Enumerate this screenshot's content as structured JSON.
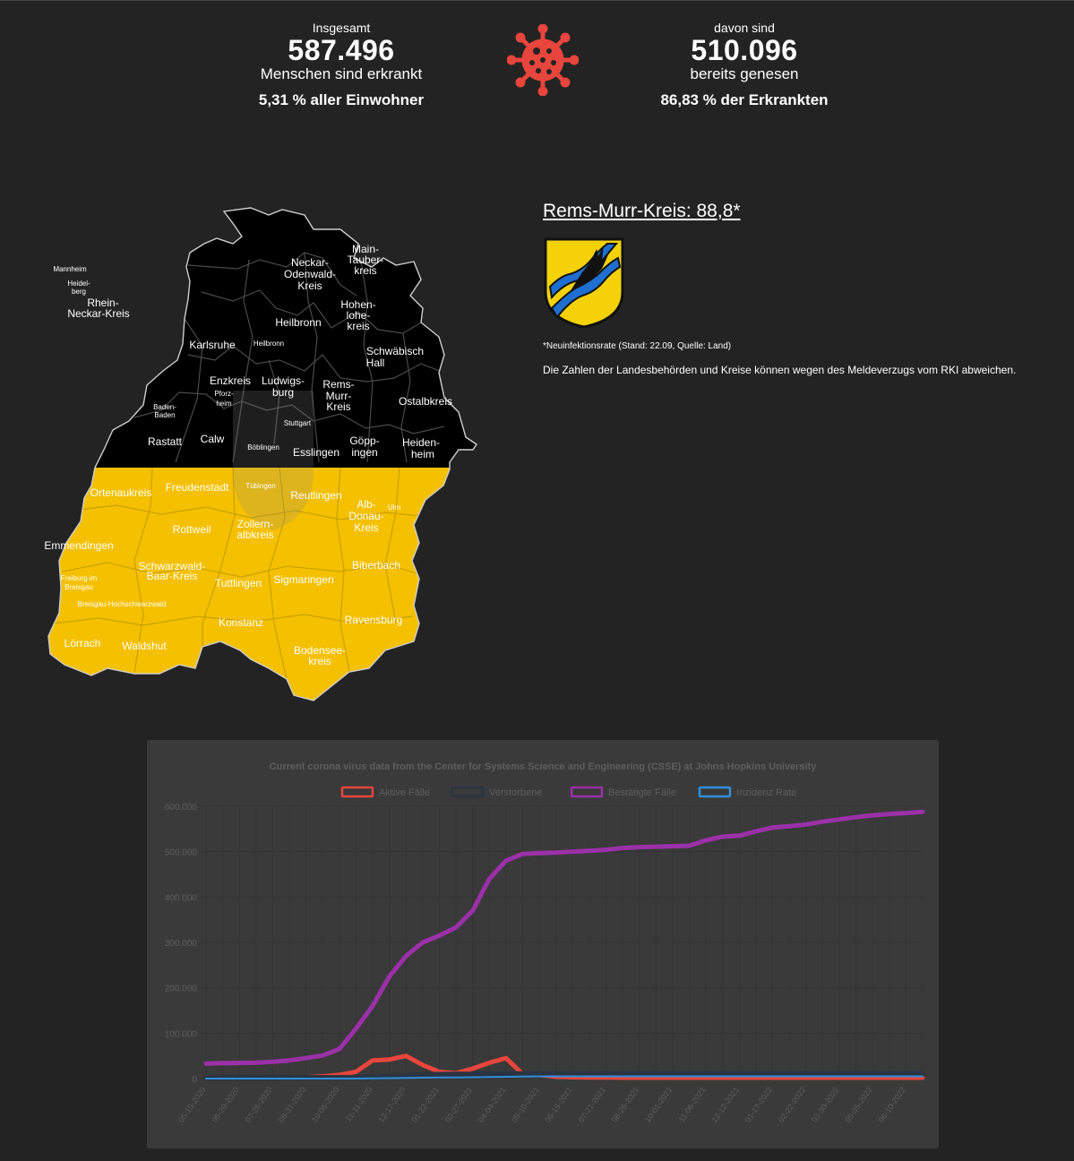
{
  "stats": {
    "left": {
      "label": "Insgesamt",
      "number": "587.496",
      "sub": "Menschen sind erkrankt",
      "percent": "5,31 % aller Einwohner"
    },
    "right": {
      "label": "davon sind",
      "number": "510.096",
      "sub": "bereits genesen",
      "percent": "86,83 % der Erkrankten"
    }
  },
  "district": {
    "title": "Rems-Murr-Kreis: 88,8*",
    "note": "*Neuinfektionsrate (Stand: 22.09, Quelle: Land)",
    "disclaimer": "Die Zahlen der Landesbehörden und Kreise können wegen des Meldeverzugs vom RKI abweichen."
  },
  "map": {
    "top_color": "#000000",
    "bottom_color": "#f5c000",
    "districts": [
      {
        "label": "Mannheim",
        "size": "tiny"
      },
      {
        "label": "Heidel-",
        "size": "tiny"
      },
      {
        "label": "berg",
        "size": "tiny"
      },
      {
        "label": "Rhein-",
        "size": "small"
      },
      {
        "label": "Neckar-Kreis",
        "size": "small"
      },
      {
        "label": "Neckar-",
        "size": "small"
      },
      {
        "label": "Odenwald-",
        "size": "small"
      },
      {
        "label": "Kreis",
        "size": "small"
      },
      {
        "label": "Main-",
        "size": "small"
      },
      {
        "label": "Tauber-",
        "size": "small"
      },
      {
        "label": "kreis",
        "size": "small"
      },
      {
        "label": "Heilbronn",
        "size": "small"
      },
      {
        "label": "Hohen-",
        "size": "small"
      },
      {
        "label": "lohe-",
        "size": "small"
      },
      {
        "label": "kreis",
        "size": "small"
      },
      {
        "label": "Karlsruhe",
        "size": "small"
      },
      {
        "label": "Heilbronn",
        "size": "tiny"
      },
      {
        "label": "Schwäbisch",
        "size": "small"
      },
      {
        "label": "Hall",
        "size": "small"
      },
      {
        "label": "Enzkreis",
        "size": "small"
      },
      {
        "label": "Ludwigs-",
        "size": "small"
      },
      {
        "label": "burg",
        "size": "small"
      },
      {
        "label": "Rems-",
        "size": "small"
      },
      {
        "label": "Murr-",
        "size": "small"
      },
      {
        "label": "Kreis",
        "size": "small"
      },
      {
        "label": "Pforz-",
        "size": "tiny"
      },
      {
        "label": "heim",
        "size": "tiny"
      },
      {
        "label": "Baden-",
        "size": "tiny"
      },
      {
        "label": "Baden",
        "size": "tiny"
      },
      {
        "label": "Ostalbkreis",
        "size": "small"
      },
      {
        "label": "Stuttgart",
        "size": "tiny"
      },
      {
        "label": "Rastatt",
        "size": "small"
      },
      {
        "label": "Calw",
        "size": "small"
      },
      {
        "label": "Böblingen",
        "size": "tiny"
      },
      {
        "label": "Göpp-",
        "size": "small"
      },
      {
        "label": "ingen",
        "size": "small"
      },
      {
        "label": "Heiden-",
        "size": "small"
      },
      {
        "label": "heim",
        "size": "small"
      },
      {
        "label": "Esslingen",
        "size": "small"
      },
      {
        "label": "Ortenaukreis",
        "size": "small"
      },
      {
        "label": "Freudenstadt",
        "size": "small"
      },
      {
        "label": "Tübingen",
        "size": "tiny"
      },
      {
        "label": "Reutlingen",
        "size": "small"
      },
      {
        "label": "Alb-",
        "size": "small"
      },
      {
        "label": "Donau-",
        "size": "small"
      },
      {
        "label": "Kreis",
        "size": "small"
      },
      {
        "label": "Ulm",
        "size": "tiny"
      },
      {
        "label": "Rottweil",
        "size": "small"
      },
      {
        "label": "Zollern-",
        "size": "small"
      },
      {
        "label": "albkreis",
        "size": "small"
      },
      {
        "label": "Emmendingen",
        "size": "small"
      },
      {
        "label": "Schwarzwald-",
        "size": "small"
      },
      {
        "label": "Baar-Kreis",
        "size": "small"
      },
      {
        "label": "Biberbach",
        "size": "small"
      },
      {
        "label": "Freiburg im",
        "size": "tiny"
      },
      {
        "label": "Breisgau",
        "size": "tiny"
      },
      {
        "label": "Tuttlingen",
        "size": "small"
      },
      {
        "label": "Sigmaringen",
        "size": "small"
      },
      {
        "label": "Breisgau-Hochschwarzwald",
        "size": "tiny"
      },
      {
        "label": "Ravensburg",
        "size": "small"
      },
      {
        "label": "Konstanz",
        "size": "small"
      },
      {
        "label": "Lörrach",
        "size": "small"
      },
      {
        "label": "Waldshut",
        "size": "small"
      },
      {
        "label": "Bodensee-",
        "size": "small"
      },
      {
        "label": "kreis",
        "size": "small"
      }
    ]
  },
  "chart_data": {
    "type": "line",
    "title": "Current corona virus data from the Center for Systems Science and Engineering (CSSE) at Johns Hopkins University",
    "xlabel": "",
    "ylabel": "",
    "ylim": [
      0,
      600000
    ],
    "y_ticks": [
      "0",
      "100.000",
      "200.000",
      "300.000",
      "400.000",
      "500.000",
      "600.000"
    ],
    "grid": true,
    "legend_position": "top",
    "categories": [
      "05-15-2020",
      "06-02-2020",
      "06-20-2020",
      "07-08-2020",
      "07-26-2020",
      "08-13-2020",
      "08-31-2020",
      "09-18-2020",
      "10-06-2020",
      "10-24-2020",
      "11-11-2020",
      "11-29-2020",
      "12-17-2020",
      "01-04-2021",
      "01-22-2021",
      "02-09-2021",
      "02-27-2021",
      "03-17-2021",
      "04-04-2021",
      "04-22-2021",
      "05-10-2021",
      "05-28-2021",
      "06-15-2021",
      "07-03-2021",
      "07-21-2021",
      "08-08-2021",
      "08-26-2021",
      "09-13-2021",
      "10-01-2021",
      "10-19-2021",
      "11-06-2021",
      "11-24-2021",
      "12-12-2021",
      "12-30-2021",
      "01-17-2022",
      "02-04-2022",
      "02-22-2022",
      "03-12-2022",
      "03-30-2022",
      "04-17-2022",
      "05-05-2022",
      "05-23-2022",
      "06-10-2022",
      "06-28-2022"
    ],
    "series": [
      {
        "name": "Aktive Fälle",
        "color": "#e8453c",
        "values": [
          3000,
          2000,
          1500,
          1200,
          1500,
          1800,
          3000,
          5000,
          8000,
          15000,
          40000,
          42000,
          50000,
          30000,
          15000,
          12000,
          22000,
          35000,
          45000,
          10000,
          8000,
          4000,
          3000,
          2500,
          2500,
          2000,
          2000,
          2000,
          2000,
          2000,
          2000,
          2000,
          2000,
          2000,
          2000,
          2000,
          2000,
          2000,
          2000,
          2000,
          2000,
          2000,
          2000,
          2000
        ]
      },
      {
        "name": "Verstorbene",
        "color": "#2b3440",
        "values": [
          1800,
          1850,
          1850,
          1850,
          1870,
          1880,
          1900,
          1950,
          2000,
          2200,
          3000,
          4500,
          6500,
          8000,
          8800,
          9200,
          9500,
          9800,
          10000,
          10200,
          10300,
          10300,
          10400,
          10400,
          10400,
          10400,
          10400,
          10400,
          10400,
          10400,
          10400,
          10400,
          10400,
          10400,
          10400,
          10400,
          10400,
          10400,
          10400,
          10400,
          10400,
          10400,
          10400,
          10400
        ]
      },
      {
        "name": "Bestätigte Fälle",
        "color": "#9b30a8",
        "values": [
          33000,
          34000,
          34500,
          35000,
          37000,
          40000,
          45000,
          51000,
          65000,
          110000,
          160000,
          225000,
          270000,
          300000,
          315000,
          333000,
          370000,
          440000,
          480000,
          495000,
          497000,
          498000,
          500000,
          502000,
          504000,
          508000,
          510000,
          511000,
          512000,
          513000,
          525000,
          533000,
          535000,
          545000,
          553000,
          556000,
          560000,
          566000,
          571000,
          576000,
          580000,
          583000,
          585000,
          587496
        ]
      },
      {
        "name": "Inzidenz Rate",
        "color": "#2f8fdc",
        "values": [
          0,
          0,
          0,
          0,
          0,
          0,
          0,
          0,
          0,
          0,
          500,
          1000,
          1500,
          2000,
          2500,
          2500,
          3000,
          3500,
          4000,
          4500,
          5000,
          5000,
          5000,
          5000,
          5000,
          5000,
          5000,
          5000,
          5000,
          5000,
          5000,
          5000,
          5000,
          5000,
          5000,
          5000,
          5000,
          5000,
          5000,
          5000,
          5000,
          5000,
          5000,
          5000
        ]
      }
    ]
  }
}
